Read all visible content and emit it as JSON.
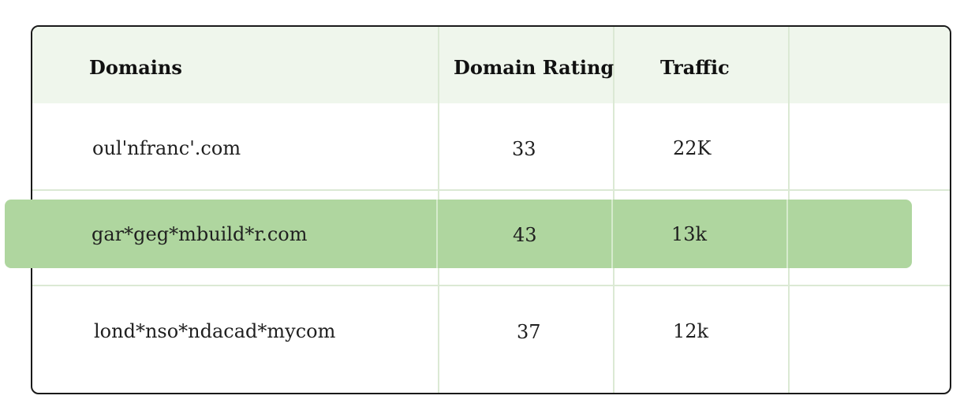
{
  "table": {
    "headers": [
      "Domains",
      "Domain Rating",
      "Traffic",
      ""
    ],
    "rows": [
      {
        "domain": "oul'nfranc'.com",
        "rating": "33",
        "traffic": "22K"
      },
      {
        "domain": "gar*geg*mbuild*r.com",
        "rating": "43",
        "traffic": "13k"
      },
      {
        "domain": "lond*nso*ndacad*mycom",
        "rating": "37",
        "traffic": "12k"
      }
    ],
    "highlighted_row": 1
  },
  "colors": {
    "header_background": "#eff6ec",
    "highlight_background": "#afd69f",
    "grid_line": "#dbe9d4",
    "border": "#1a1a1a"
  }
}
